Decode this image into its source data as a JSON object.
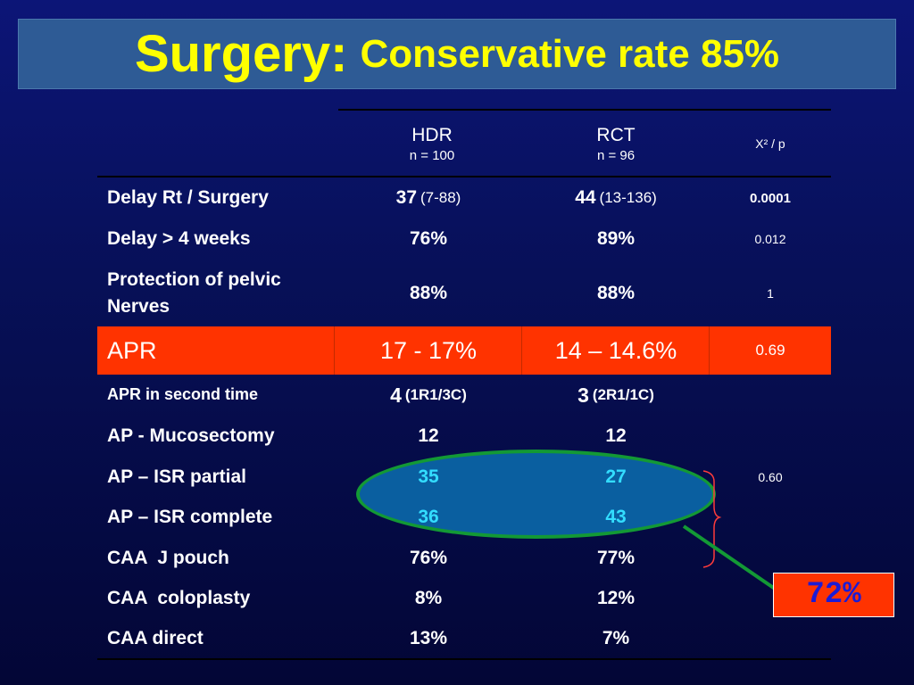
{
  "title": {
    "main": "Surgery:",
    "sub": "Conservative rate 85%"
  },
  "header": {
    "hdr": {
      "label": "HDR",
      "n": "n = 100"
    },
    "rct": {
      "label": "RCT",
      "n": "n = 96"
    },
    "stat": "X² / p"
  },
  "rows": {
    "delay_surgery": {
      "label": "Delay Rt / Surgery",
      "hdr": "37",
      "hdr_range": "(7-88)",
      "rct": "44",
      "rct_range": "(13-136)",
      "p": "0.0001"
    },
    "delay_4w": {
      "label": "Delay > 4 weeks",
      "hdr": "76%",
      "rct": "89%",
      "p": "0.012"
    },
    "pelvic": {
      "label_line1": "Protection of pelvic",
      "label_line2": "Nerves",
      "hdr": "88%",
      "rct": "88%",
      "p": "1"
    },
    "apr": {
      "label": "APR",
      "hdr": "17 - 17%",
      "rct": "14 – 14.6%",
      "p": "0.69"
    },
    "apr_second": {
      "label": "APR in second time",
      "hdr": "4",
      "hdr_detail": "(1R1/3C)",
      "rct": "3",
      "rct_detail": "(2R1/1C)"
    },
    "ap_muco": {
      "label": "AP - Mucosectomy",
      "hdr": "12",
      "rct": "12"
    },
    "isr_partial": {
      "label": "AP – ISR partial",
      "hdr": "35",
      "rct": "27",
      "p": "0.60"
    },
    "isr_complete": {
      "label": "AP – ISR complete",
      "hdr": "36",
      "rct": "43"
    },
    "caa_j": {
      "label": "CAA  J pouch",
      "hdr": "76%",
      "rct": "77%"
    },
    "caa_colo": {
      "label": "CAA  coloplasty",
      "hdr": "8%",
      "rct": "12%"
    },
    "caa_direct": {
      "label": "CAA direct",
      "hdr": "13%",
      "rct": "7%"
    }
  },
  "callout": {
    "value": "72%"
  },
  "colors": {
    "title": "#ffff00",
    "highlight_row": "#ff3300",
    "ellipse_fill": "#0a5fa0",
    "ellipse_border": "#139935",
    "isr_values": "#33ddff",
    "callout_text": "#1b1bd6"
  }
}
